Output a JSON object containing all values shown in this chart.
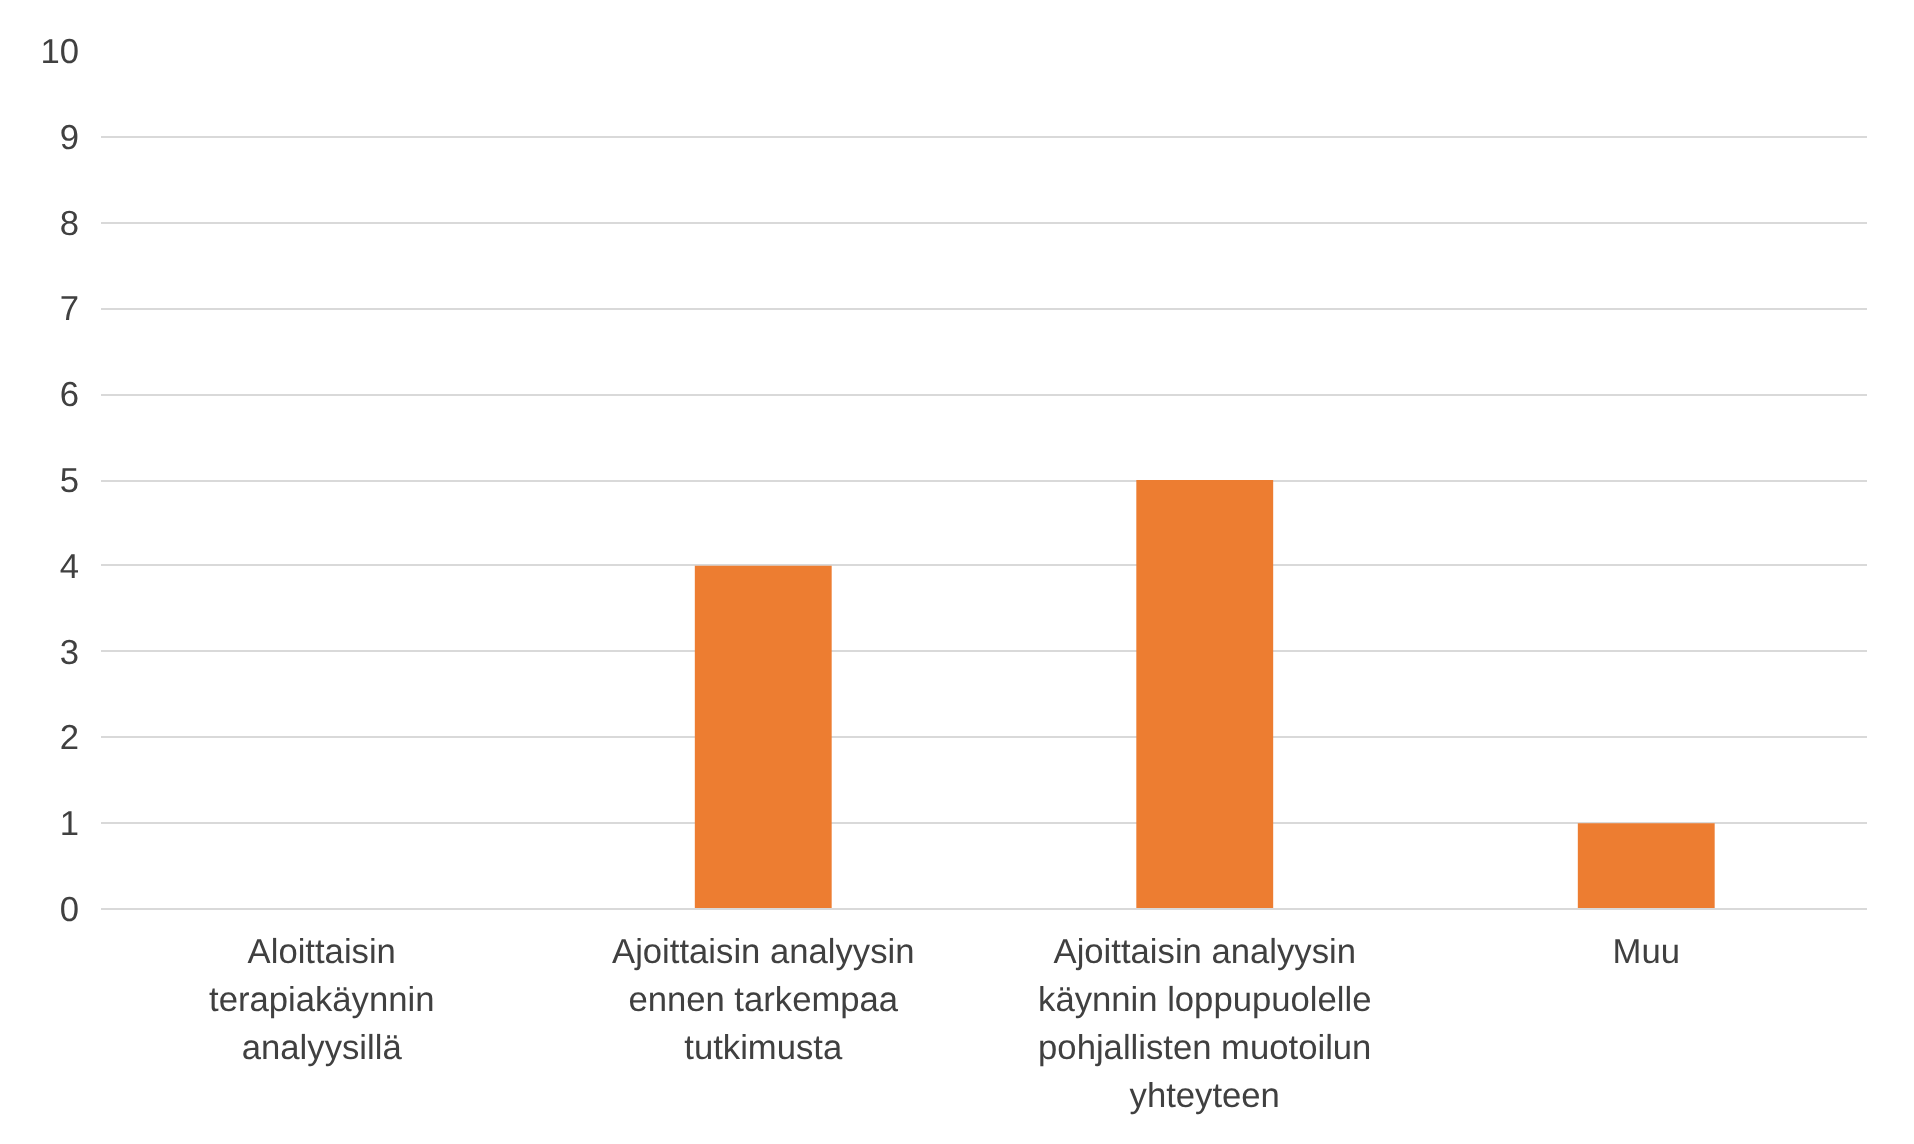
{
  "chart_data": {
    "type": "bar",
    "categories": [
      "Aloittaisin terapiakäynnin analyysillä",
      "Ajoittaisin analyysin ennen tarkempaa tutkimusta",
      "Ajoittaisin analyysin käynnin loppupuolelle pohjallisten muotoilun yhteyteen",
      "Muu"
    ],
    "values": [
      0,
      4,
      5,
      1
    ],
    "color": "#ed7d31",
    "ylim": [
      0,
      10
    ],
    "yticks": [
      0,
      1,
      2,
      3,
      4,
      5,
      6,
      7,
      8,
      9,
      10
    ],
    "grid": "y"
  }
}
